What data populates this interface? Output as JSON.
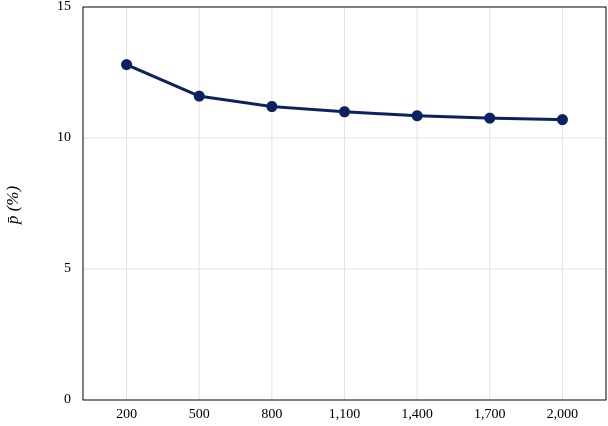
{
  "chart_data": {
    "type": "line",
    "y_label": "p̄ (%)",
    "x": [
      200,
      500,
      800,
      1100,
      1400,
      1700,
      2000
    ],
    "series": [
      {
        "color": "#0b2160",
        "values": [
          12.8,
          11.6,
          11.2,
          11.0,
          10.85,
          10.76,
          10.7
        ]
      }
    ],
    "xlim": [
      20,
      2180
    ],
    "xticks": [
      200,
      500,
      800,
      {
        "value": 1100,
        "label": "1,100"
      },
      {
        "value": 1400,
        "label": "1,400"
      },
      {
        "value": 1700,
        "label": "1,700"
      },
      {
        "value": 2000,
        "label": "2,000"
      }
    ],
    "ylim": [
      0,
      15
    ],
    "yticks": [
      0,
      5,
      10,
      15
    ],
    "grid": true
  }
}
